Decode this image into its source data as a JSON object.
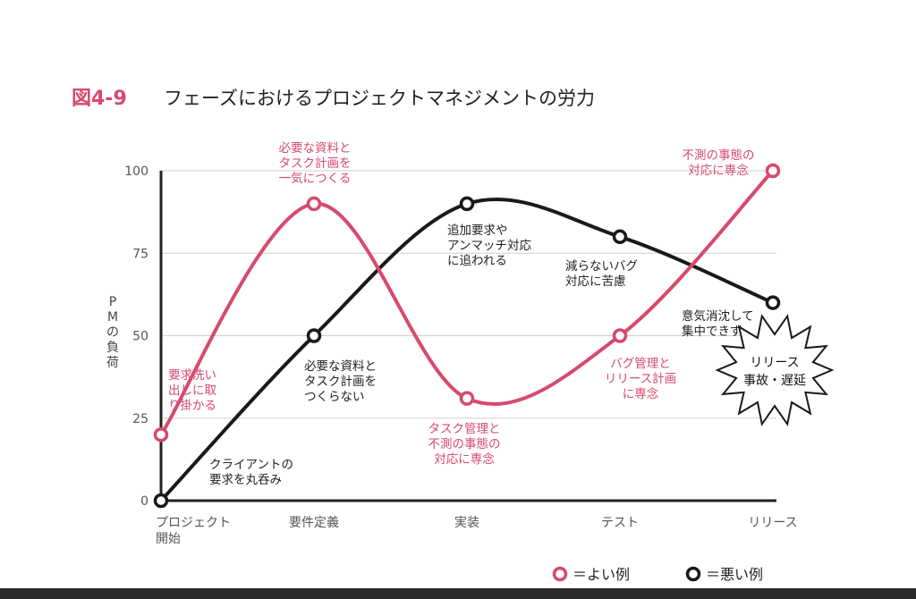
{
  "figure": {
    "number": "図4-9",
    "title": "フェーズにおけるプロジェクトマネジメントの労力"
  },
  "colors": {
    "good": "#d7496e",
    "bad": "#1a1a1a",
    "axis": "#222222",
    "grid": "#cfcfcf",
    "tick_text": "#555555"
  },
  "legend": {
    "good_label": "＝よい例",
    "bad_label": "＝悪い例",
    "placement": "bottom-right"
  },
  "chart_data": {
    "type": "line",
    "title": "フェーズにおけるプロジェクトマネジメントの労力",
    "ylabel": "PMの負荷",
    "xlabel": "",
    "categories": [
      "プロジェクト開始",
      "要件定義",
      "実装",
      "テスト",
      "リリース"
    ],
    "category_lines": [
      [
        "プロジェクト",
        "開始"
      ],
      [
        "要件定義"
      ],
      [
        "実装"
      ],
      [
        "テスト"
      ],
      [
        "リリース"
      ]
    ],
    "y_ticks": [
      0,
      25,
      50,
      75,
      100
    ],
    "ylim": [
      0,
      100
    ],
    "grid": true,
    "series": [
      {
        "name": "よい例",
        "key": "good",
        "values": [
          20,
          90,
          31,
          50,
          100
        ],
        "annotations": [
          [
            "要求洗い",
            "出しに取",
            "り掛かる"
          ],
          [
            "必要な資料と",
            "タスク計画を",
            "一気につくる"
          ],
          [
            "タスク管理と",
            "不測の事態の",
            "対応に専念"
          ],
          [
            "バグ管理と",
            "リリース計画",
            "に専念"
          ],
          [
            "不測の事態の",
            "対応に専念"
          ]
        ]
      },
      {
        "name": "悪い例",
        "key": "bad",
        "values": [
          0,
          50,
          90,
          80,
          60
        ],
        "annotations": [
          [
            "クライアントの",
            "要求を丸呑み"
          ],
          [
            "必要な資料と",
            "タスク計画を",
            "つくらない"
          ],
          [
            "追加要求や",
            "アンマッチ対応",
            "に追われる"
          ],
          [
            "減らないバグ",
            "対応に苦慮"
          ],
          [
            "意気消沈して",
            "集中できず"
          ]
        ]
      }
    ],
    "callout": [
      "リリース",
      "事故・遅延"
    ]
  }
}
